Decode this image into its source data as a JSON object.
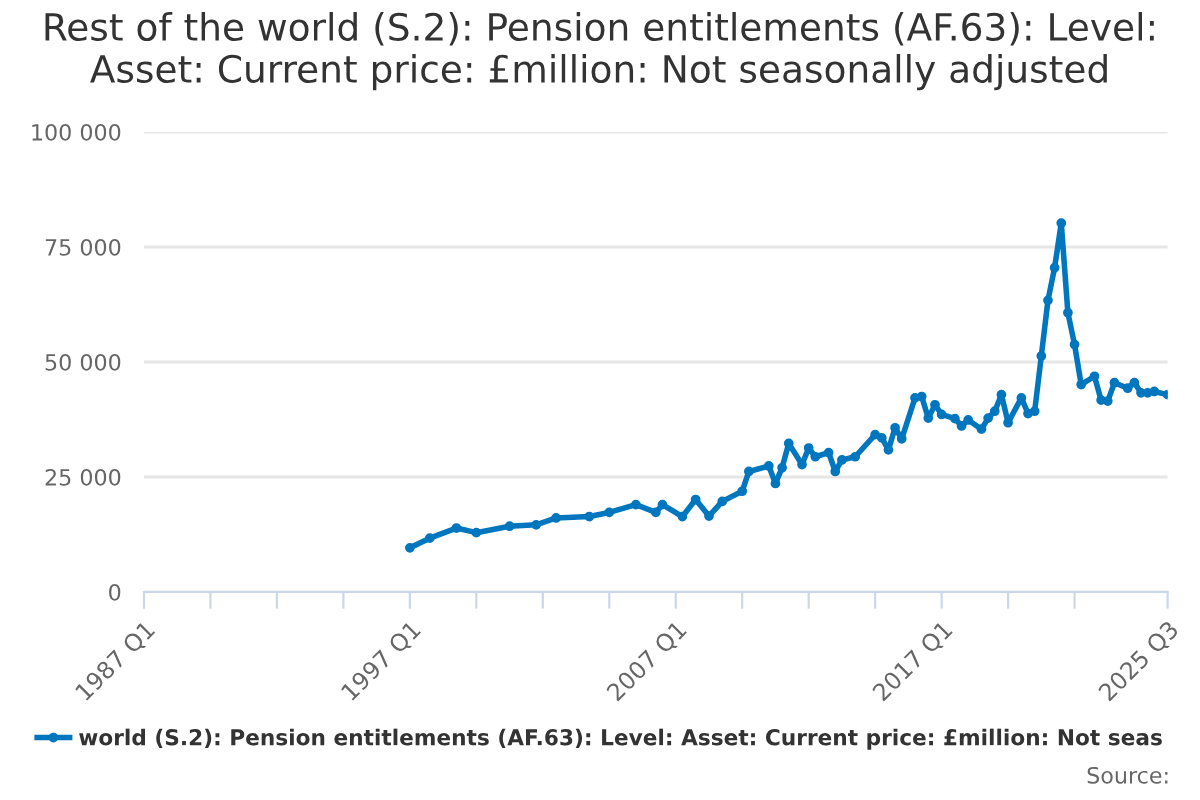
{
  "chart_data": {
    "type": "line",
    "title": "Rest of the world (S.2): Pension entitlements (AF.63): Level: Asset: Current price: £million: Not seasonally adjusted",
    "x": [
      "1997-01",
      "1997-10",
      "1998-10",
      "1999-07",
      "2000-10",
      "2001-10",
      "2002-07",
      "2003-10",
      "2004-07",
      "2005-07",
      "2006-04",
      "2006-07",
      "2007-04",
      "2007-10",
      "2008-04",
      "2008-10",
      "2009-07",
      "2009-10",
      "2010-07",
      "2010-10",
      "2011-01",
      "2011-04",
      "2011-10",
      "2012-01",
      "2012-04",
      "2012-10",
      "2013-01",
      "2013-04",
      "2013-10",
      "2014-07",
      "2014-10",
      "2015-01",
      "2015-04",
      "2015-07",
      "2016-01",
      "2016-04",
      "2016-07",
      "2016-10",
      "2017-01",
      "2017-07",
      "2017-10",
      "2018-01",
      "2018-07",
      "2018-10",
      "2019-01",
      "2019-04",
      "2019-07",
      "2020-01",
      "2020-04",
      "2020-07",
      "2020-10",
      "2021-01",
      "2021-04",
      "2021-07",
      "2021-10",
      "2022-01",
      "2022-04",
      "2022-10",
      "2023-01",
      "2023-04",
      "2023-07",
      "2024-01",
      "2024-04",
      "2024-07",
      "2024-10",
      "2025-01",
      "2025-07"
    ],
    "series": [
      {
        "name": "world (S.2): Pension entitlements (AF.63): Level: Asset: Current price: £million: Not seas",
        "color": "#0076bf",
        "values": [
          9600,
          11700,
          13900,
          12900,
          14300,
          14600,
          16100,
          16400,
          17300,
          19000,
          17300,
          19000,
          16400,
          20100,
          16500,
          19700,
          21900,
          26200,
          27400,
          23600,
          27000,
          32300,
          27700,
          31300,
          29400,
          30300,
          26200,
          28700,
          29400,
          34200,
          33500,
          30900,
          35700,
          33300,
          42200,
          42500,
          37800,
          40700,
          38600,
          37700,
          36100,
          37400,
          35400,
          37800,
          39300,
          42900,
          36800,
          42200,
          38800,
          39300,
          51300,
          63400,
          70500,
          80200,
          60700,
          53800,
          45100,
          46900,
          41700,
          41500,
          45500,
          44300,
          45500,
          43300,
          43300,
          43600,
          42900
        ]
      }
    ],
    "xlim": [
      "1987-01",
      "2025-07"
    ],
    "xticks": [
      {
        "value": "1987-01",
        "label": "1987 Q1"
      },
      {
        "value": "1989-07",
        "label": null
      },
      {
        "value": "1992-01",
        "label": null
      },
      {
        "value": "1994-07",
        "label": null
      },
      {
        "value": "1997-01",
        "label": "1997 Q1"
      },
      {
        "value": "1999-07",
        "label": null
      },
      {
        "value": "2002-01",
        "label": null
      },
      {
        "value": "2004-07",
        "label": null
      },
      {
        "value": "2007-01",
        "label": "2007 Q1"
      },
      {
        "value": "2009-07",
        "label": null
      },
      {
        "value": "2012-01",
        "label": null
      },
      {
        "value": "2014-07",
        "label": null
      },
      {
        "value": "2017-01",
        "label": "2017 Q1"
      },
      {
        "value": "2019-07",
        "label": null
      },
      {
        "value": "2022-01",
        "label": null
      },
      {
        "value": "2025-07",
        "label": "2025 Q3"
      }
    ],
    "ylim": [
      0,
      100000
    ],
    "yticks": [
      0,
      {
        "value": 25000,
        "label": "25 000"
      },
      {
        "value": 50000,
        "label": "50 000"
      },
      {
        "value": 75000,
        "label": "75 000"
      },
      {
        "value": 100000,
        "label": "100 000"
      }
    ],
    "grid": "y",
    "legend": "bottom",
    "marker": "circle",
    "line_style": "solid",
    "annotations": [
      "Source:"
    ]
  }
}
